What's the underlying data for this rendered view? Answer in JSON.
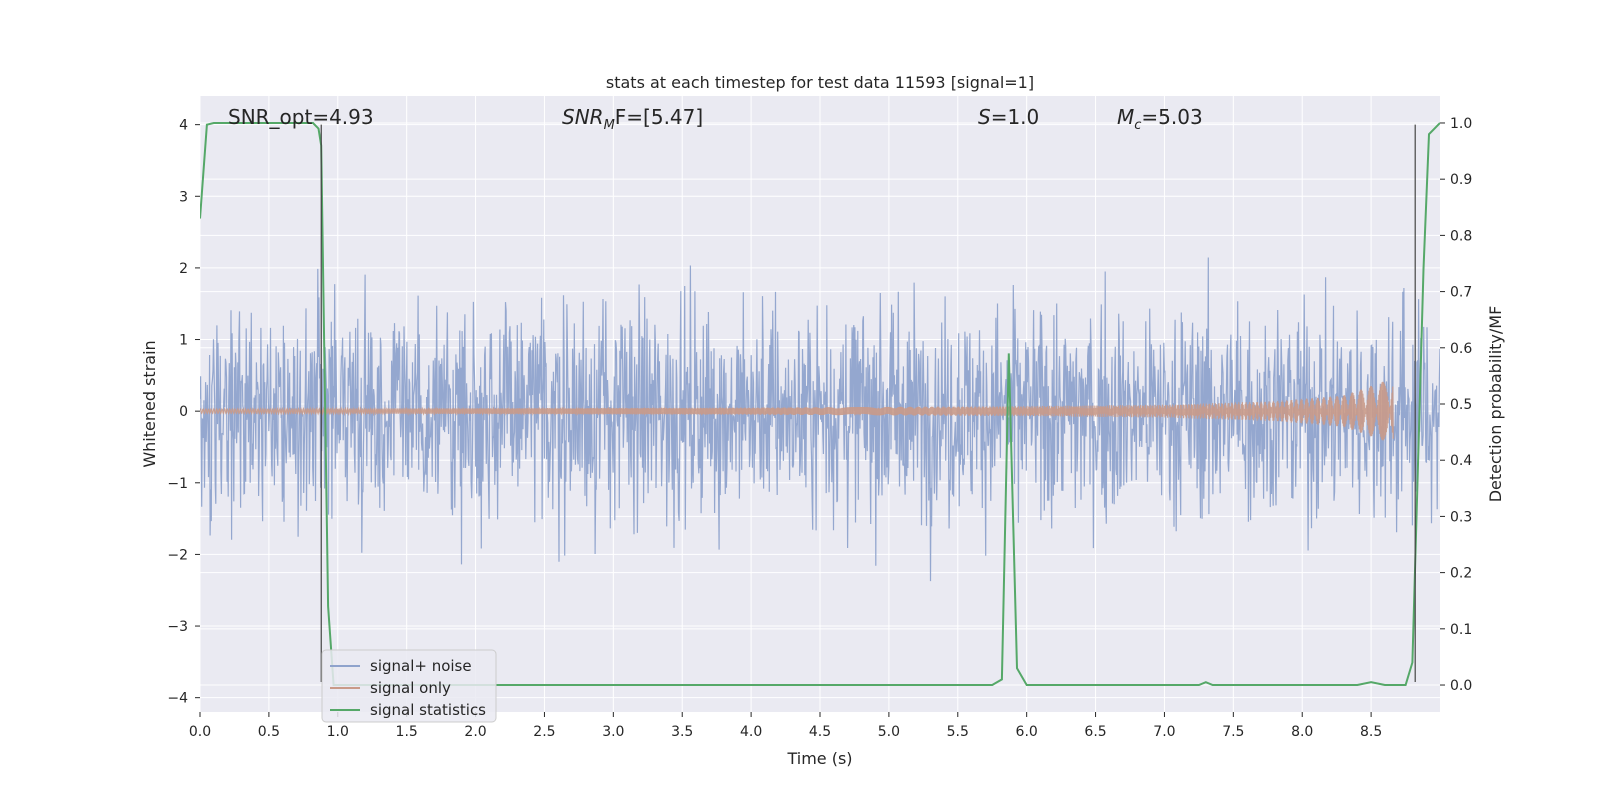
{
  "chart_data": {
    "type": "line",
    "title": "stats at each timestep for test data 11593 [signal=1]",
    "xlabel": "Time (s)",
    "ylabel": "Whitened strain",
    "y2label": "Detection probability/MF",
    "xlim": [
      0.0,
      9.0
    ],
    "ylim": [
      -4.2,
      4.4
    ],
    "y2lim": [
      -0.048,
      1.048
    ],
    "x_ticks": [
      "0.0",
      "0.5",
      "1.0",
      "1.5",
      "2.0",
      "2.5",
      "3.0",
      "3.5",
      "4.0",
      "4.5",
      "5.0",
      "5.5",
      "6.0",
      "6.5",
      "7.0",
      "7.5",
      "8.0",
      "8.5"
    ],
    "y_ticks": [
      "4",
      "3",
      "2",
      "1",
      "0",
      "−1",
      "−2",
      "−3",
      "−4"
    ],
    "y2_ticks": [
      "1.0",
      "0.9",
      "0.8",
      "0.7",
      "0.6",
      "0.5",
      "0.4",
      "0.3",
      "0.2",
      "0.1",
      "0.0"
    ],
    "grid": true,
    "legend_position": "lower-left",
    "annotations": [
      {
        "base": "SNR_opt=4.93",
        "sub": "",
        "rest": ""
      },
      {
        "base": "SNR",
        "sub": "M",
        "rest": "F=[5.47]"
      },
      {
        "base": "S",
        "sub": "",
        "rest": "=1.0"
      },
      {
        "base": "M",
        "sub": "c",
        "rest": "=5.03"
      }
    ],
    "series": [
      {
        "name": "signal+ noise",
        "color": "#8fa3cc",
        "kind": "noise",
        "amplitude_sd": 1.0,
        "x_range": [
          0.0,
          9.0
        ]
      },
      {
        "name": "signal only",
        "color": "#c99a88",
        "kind": "chirp",
        "x_range": [
          0.0,
          8.66
        ],
        "envelope": {
          "x": [
            0.0,
            4.0,
            6.0,
            7.0,
            7.8,
            8.3,
            8.6,
            8.66
          ],
          "amp": [
            0.03,
            0.05,
            0.07,
            0.09,
            0.14,
            0.22,
            0.42,
            0.6
          ]
        }
      },
      {
        "name": "signal statistics",
        "color": "#55a868",
        "axis": "right",
        "x": [
          0.0,
          0.05,
          0.1,
          0.82,
          0.86,
          0.88,
          0.93,
          0.97,
          5.75,
          5.82,
          5.87,
          5.93,
          6.0,
          7.25,
          7.3,
          7.35,
          8.4,
          8.5,
          8.6,
          8.75,
          8.8,
          8.88,
          8.92,
          9.0
        ],
        "y": [
          0.83,
          0.997,
          1.0,
          1.0,
          0.99,
          0.96,
          0.14,
          0.0,
          0.0,
          0.01,
          0.59,
          0.03,
          0.0,
          0.0,
          0.005,
          0.0,
          0.0,
          0.005,
          0.0,
          0.0,
          0.04,
          0.74,
          0.98,
          1.0
        ]
      }
    ],
    "vlines": [
      0.88,
      8.82
    ]
  }
}
